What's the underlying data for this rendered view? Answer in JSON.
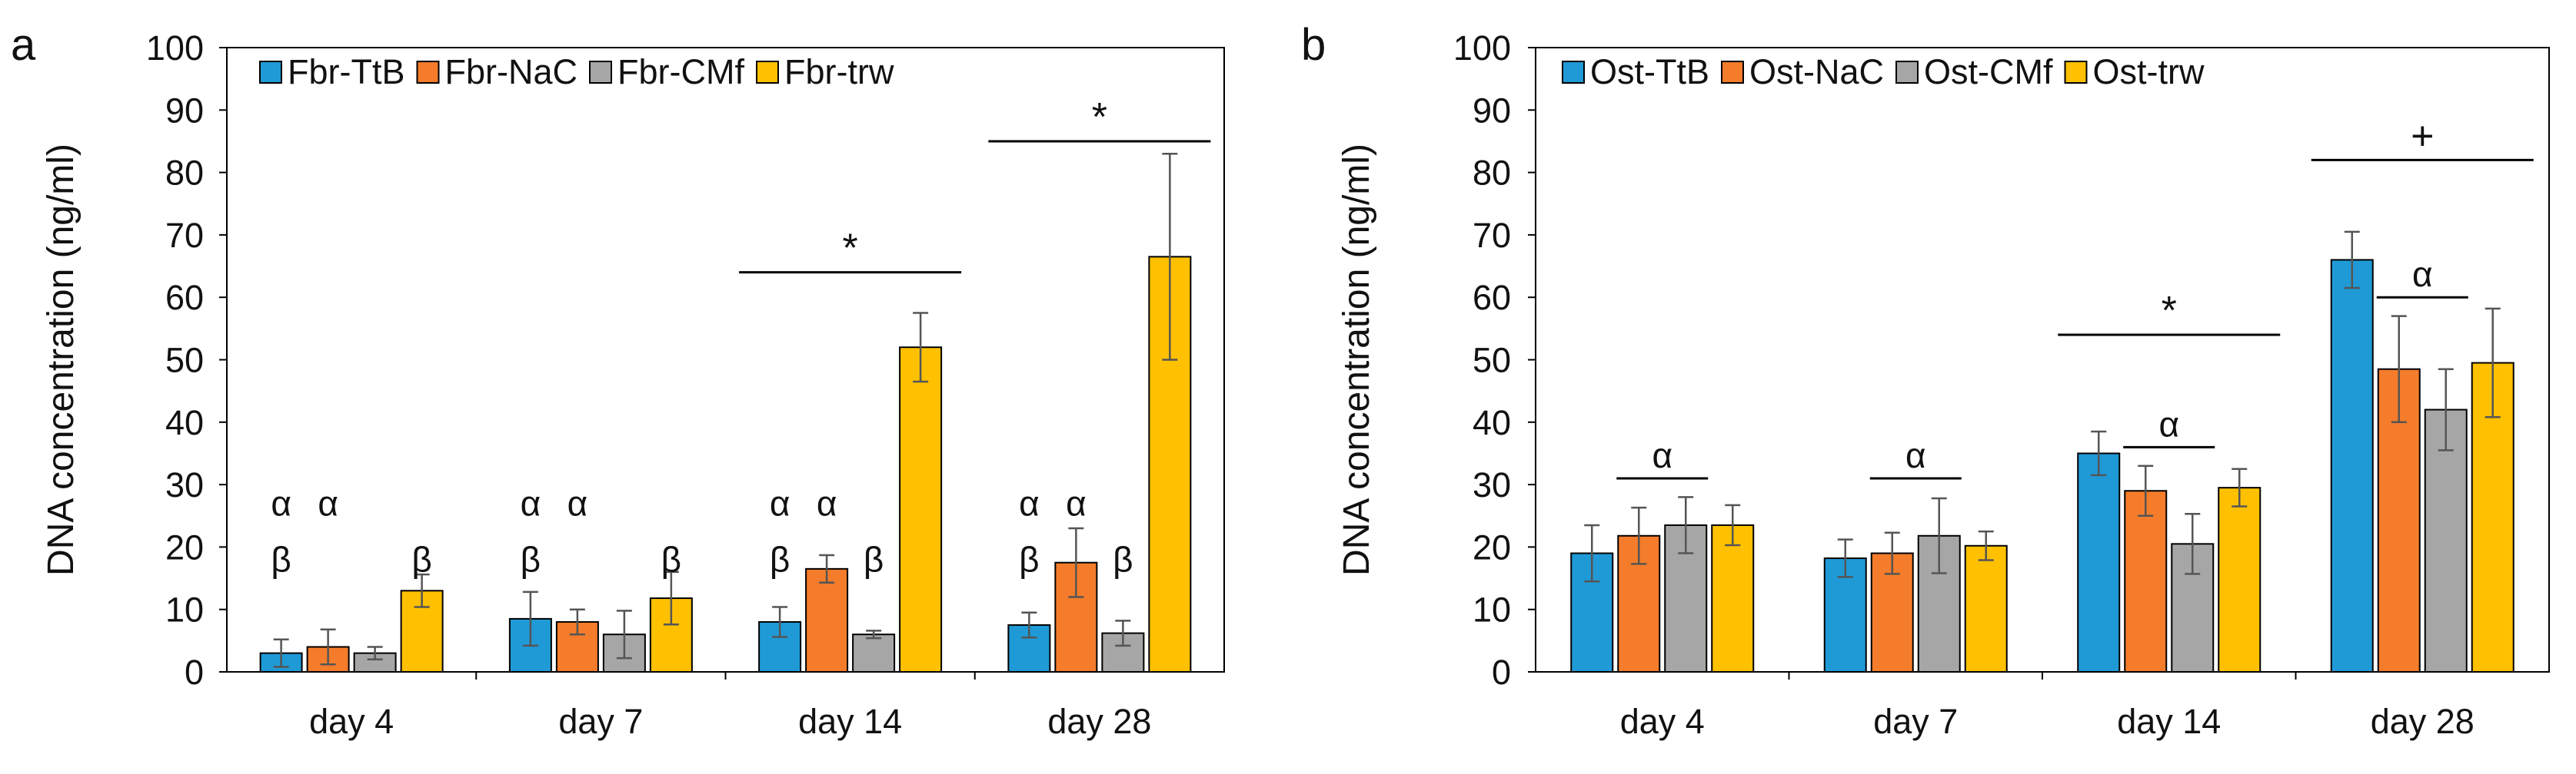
{
  "figure_title": "",
  "chart_data": [
    {
      "type": "bar",
      "panel_label": "a",
      "title": "",
      "xlabel": "",
      "ylabel": "DNA concentration (ng/ml)",
      "ylim": [
        0,
        100
      ],
      "yticks": [
        0,
        10,
        20,
        30,
        40,
        50,
        60,
        70,
        80,
        90,
        100
      ],
      "grid": false,
      "legend": "top",
      "categories": [
        "day 4",
        "day 7",
        "day 14",
        "day 28"
      ],
      "series": [
        {
          "name": "Fbr-TtB",
          "color": "#1f9ad6",
          "values": [
            3.0,
            8.5,
            8.0,
            7.5
          ],
          "errors": [
            2.2,
            4.3,
            2.4,
            2.0
          ]
        },
        {
          "name": "Fbr-NaC",
          "color": "#f47c2a",
          "values": [
            4.0,
            8.0,
            16.5,
            17.5
          ],
          "errors": [
            2.8,
            2.0,
            2.2,
            5.5
          ]
        },
        {
          "name": "Fbr-CMf",
          "color": "#a6a6a6",
          "values": [
            3.0,
            6.0,
            6.0,
            6.2
          ],
          "errors": [
            1.0,
            3.8,
            0.6,
            2.0
          ]
        },
        {
          "name": "Fbr-trw",
          "color": "#ffc000",
          "values": [
            13.0,
            11.8,
            52.0,
            66.5
          ],
          "errors": [
            2.6,
            4.2,
            5.5,
            16.5
          ]
        }
      ],
      "annotations": [
        {
          "text": "α",
          "category": 0,
          "series": 0,
          "y": 27
        },
        {
          "text": "α",
          "category": 0,
          "series": 1,
          "y": 27
        },
        {
          "text": "β",
          "category": 0,
          "series": 0,
          "y": 18
        },
        {
          "text": "β",
          "category": 0,
          "series": 3,
          "y": 18
        },
        {
          "text": "α",
          "category": 1,
          "series": 0,
          "y": 27
        },
        {
          "text": "α",
          "category": 1,
          "series": 1,
          "y": 27
        },
        {
          "text": "β",
          "category": 1,
          "series": 0,
          "y": 18
        },
        {
          "text": "β",
          "category": 1,
          "series": 3,
          "y": 18
        },
        {
          "text": "α",
          "category": 2,
          "series": 0,
          "y": 27
        },
        {
          "text": "α",
          "category": 2,
          "series": 1,
          "y": 27
        },
        {
          "text": "β",
          "category": 2,
          "series": 0,
          "y": 18
        },
        {
          "text": "β",
          "category": 2,
          "series": 2,
          "y": 18
        },
        {
          "text": "α",
          "category": 3,
          "series": 0,
          "y": 27
        },
        {
          "text": "α",
          "category": 3,
          "series": 1,
          "y": 27
        },
        {
          "text": "β",
          "category": 3,
          "series": 0,
          "y": 18
        },
        {
          "text": "β",
          "category": 3,
          "series": 2,
          "y": 18
        }
      ],
      "brackets": [
        {
          "text": "*",
          "category": 2,
          "y": 64
        },
        {
          "text": "*",
          "category": 3,
          "y": 85
        }
      ]
    },
    {
      "type": "bar",
      "panel_label": "b",
      "title": "",
      "xlabel": "",
      "ylabel": "DNA concentration (ng/ml)",
      "ylim": [
        0,
        100
      ],
      "yticks": [
        0,
        10,
        20,
        30,
        40,
        50,
        60,
        70,
        80,
        90,
        100
      ],
      "grid": false,
      "legend": "top",
      "categories": [
        "day 4",
        "day 7",
        "day 14",
        "day 28"
      ],
      "series": [
        {
          "name": "Ost-TtB",
          "color": "#1f9ad6",
          "values": [
            19.0,
            18.2,
            35.0,
            66.0
          ],
          "errors": [
            4.5,
            3.0,
            3.5,
            4.5
          ]
        },
        {
          "name": "Ost-NaC",
          "color": "#f47c2a",
          "values": [
            21.8,
            19.0,
            29.0,
            48.5
          ],
          "errors": [
            4.5,
            3.3,
            4.0,
            8.5
          ]
        },
        {
          "name": "Ost-CMf",
          "color": "#a6a6a6",
          "values": [
            23.5,
            21.8,
            20.5,
            42.0
          ],
          "errors": [
            4.5,
            6.0,
            4.8,
            6.5
          ]
        },
        {
          "name": "Ost-trw",
          "color": "#ffc000",
          "values": [
            23.5,
            20.2,
            29.5,
            49.5
          ],
          "errors": [
            3.2,
            2.3,
            3.0,
            8.7
          ]
        }
      ],
      "annotations": [],
      "brackets": [
        {
          "text": "α",
          "category": 0,
          "span": [
            1,
            2
          ],
          "y": 31
        },
        {
          "text": "α",
          "category": 1,
          "span": [
            1,
            2
          ],
          "y": 31
        },
        {
          "text": "*",
          "category": 2,
          "span": [
            0,
            3
          ],
          "y": 54
        },
        {
          "text": "α",
          "category": 2,
          "span": [
            1,
            2
          ],
          "y": 36
        },
        {
          "text": "+",
          "category": 3,
          "span": [
            0,
            3
          ],
          "y": 82
        },
        {
          "text": "α",
          "category": 3,
          "span": [
            1,
            2
          ],
          "y": 60
        }
      ]
    }
  ]
}
